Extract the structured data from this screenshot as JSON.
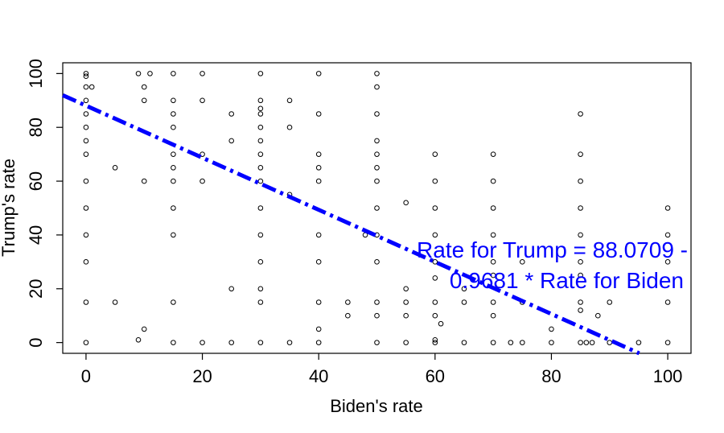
{
  "chart_data": {
    "type": "scatter",
    "title": "",
    "xlabel": "Biden's rate",
    "ylabel": "Trump's rate",
    "xlim": [
      -4,
      104
    ],
    "ylim": [
      -4,
      104
    ],
    "xticks": [
      0,
      20,
      40,
      60,
      80,
      100
    ],
    "yticks": [
      0,
      20,
      40,
      60,
      80,
      100
    ],
    "grid": false,
    "point_color": "#000000",
    "line_color": "#0000ff",
    "regression": {
      "intercept": 88.0709,
      "slope": -0.9681
    },
    "annotation": {
      "line1": "Rate for Trump = 88.0709 -",
      "line2": "0.9681 * Rate for Biden",
      "color": "#0000ff"
    },
    "points": [
      [
        0,
        100
      ],
      [
        0,
        99
      ],
      [
        0,
        95
      ],
      [
        0,
        90
      ],
      [
        0,
        85
      ],
      [
        0,
        80
      ],
      [
        0,
        75
      ],
      [
        0,
        70
      ],
      [
        0,
        60
      ],
      [
        0,
        50
      ],
      [
        0,
        40
      ],
      [
        0,
        30
      ],
      [
        0,
        15
      ],
      [
        0,
        0
      ],
      [
        1,
        95
      ],
      [
        5,
        65
      ],
      [
        5,
        15
      ],
      [
        9,
        100
      ],
      [
        9,
        1
      ],
      [
        10,
        95
      ],
      [
        10,
        90
      ],
      [
        10,
        60
      ],
      [
        10,
        5
      ],
      [
        11,
        100
      ],
      [
        15,
        100
      ],
      [
        15,
        90
      ],
      [
        15,
        85
      ],
      [
        15,
        80
      ],
      [
        15,
        70
      ],
      [
        15,
        65
      ],
      [
        15,
        60
      ],
      [
        15,
        50
      ],
      [
        15,
        40
      ],
      [
        15,
        15
      ],
      [
        15,
        0
      ],
      [
        20,
        100
      ],
      [
        20,
        90
      ],
      [
        20,
        70
      ],
      [
        20,
        60
      ],
      [
        20,
        0
      ],
      [
        25,
        85
      ],
      [
        25,
        75
      ],
      [
        25,
        20
      ],
      [
        25,
        0
      ],
      [
        30,
        100
      ],
      [
        30,
        90
      ],
      [
        30,
        87
      ],
      [
        30,
        85
      ],
      [
        30,
        80
      ],
      [
        30,
        75
      ],
      [
        30,
        70
      ],
      [
        30,
        65
      ],
      [
        30,
        60
      ],
      [
        30,
        50
      ],
      [
        30,
        40
      ],
      [
        30,
        30
      ],
      [
        30,
        20
      ],
      [
        30,
        15
      ],
      [
        30,
        0
      ],
      [
        35,
        90
      ],
      [
        35,
        80
      ],
      [
        35,
        55
      ],
      [
        35,
        0
      ],
      [
        40,
        100
      ],
      [
        40,
        85
      ],
      [
        40,
        70
      ],
      [
        40,
        65
      ],
      [
        40,
        60
      ],
      [
        40,
        40
      ],
      [
        40,
        30
      ],
      [
        40,
        15
      ],
      [
        40,
        5
      ],
      [
        40,
        0
      ],
      [
        45,
        15
      ],
      [
        45,
        10
      ],
      [
        48,
        40
      ],
      [
        50,
        100
      ],
      [
        50,
        95
      ],
      [
        50,
        85
      ],
      [
        50,
        75
      ],
      [
        50,
        70
      ],
      [
        50,
        65
      ],
      [
        50,
        60
      ],
      [
        50,
        50
      ],
      [
        50,
        40
      ],
      [
        50,
        30
      ],
      [
        50,
        15
      ],
      [
        50,
        10
      ],
      [
        50,
        0
      ],
      [
        55,
        52
      ],
      [
        55,
        20
      ],
      [
        55,
        15
      ],
      [
        55,
        10
      ],
      [
        55,
        0
      ],
      [
        60,
        70
      ],
      [
        60,
        60
      ],
      [
        60,
        50
      ],
      [
        60,
        40
      ],
      [
        60,
        30
      ],
      [
        60,
        24
      ],
      [
        60,
        15
      ],
      [
        60,
        10
      ],
      [
        60,
        1
      ],
      [
        60,
        0
      ],
      [
        61,
        7
      ],
      [
        65,
        20
      ],
      [
        65,
        15
      ],
      [
        65,
        0
      ],
      [
        70,
        70
      ],
      [
        70,
        60
      ],
      [
        70,
        50
      ],
      [
        70,
        40
      ],
      [
        70,
        30
      ],
      [
        70,
        25
      ],
      [
        70,
        15
      ],
      [
        70,
        10
      ],
      [
        70,
        0
      ],
      [
        73,
        0
      ],
      [
        75,
        30
      ],
      [
        75,
        15
      ],
      [
        75,
        0
      ],
      [
        80,
        5
      ],
      [
        80,
        0
      ],
      [
        85,
        85
      ],
      [
        85,
        70
      ],
      [
        85,
        60
      ],
      [
        85,
        50
      ],
      [
        85,
        40
      ],
      [
        85,
        30
      ],
      [
        85,
        25
      ],
      [
        85,
        15
      ],
      [
        85,
        12
      ],
      [
        85,
        0
      ],
      [
        86,
        0
      ],
      [
        87,
        0
      ],
      [
        88,
        10
      ],
      [
        90,
        15
      ],
      [
        90,
        0
      ],
      [
        95,
        0
      ],
      [
        100,
        50
      ],
      [
        100,
        40
      ],
      [
        100,
        30
      ],
      [
        100,
        15
      ],
      [
        100,
        0
      ]
    ]
  }
}
